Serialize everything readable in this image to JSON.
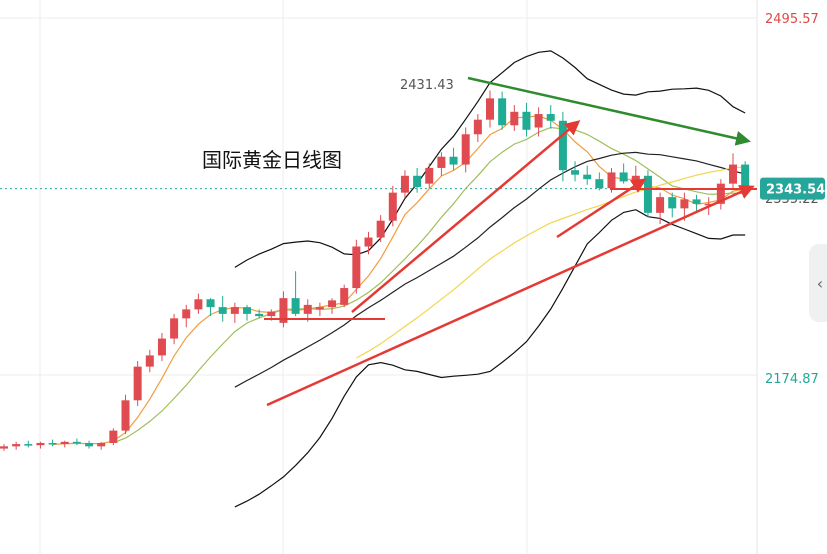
{
  "chart_data": {
    "type": "candlestick",
    "title": "国际黄金日线图",
    "ylim": [
      2110,
      2510
    ],
    "axis_ticks": [
      {
        "value": 2495.57,
        "label": "2495.57",
        "color": "#e04848"
      },
      {
        "value": 2335.22,
        "label": "2335.22",
        "color": "#555555"
      },
      {
        "value": 2174.87,
        "label": "2174.87",
        "color": "#26a69a"
      }
    ],
    "last_price": {
      "value": 2343.54,
      "label": "2343.54",
      "color": "#26a69a"
    },
    "high_annotation": {
      "value": 2431.43,
      "label": "2431.43"
    },
    "up_color": "#e04b52",
    "down_color": "#1fab94",
    "candles": [
      [
        2112,
        2116,
        2110,
        2114
      ],
      [
        2114,
        2118,
        2111,
        2116
      ],
      [
        2116,
        2119,
        2113,
        2115
      ],
      [
        2115,
        2118,
        2112,
        2117
      ],
      [
        2117,
        2120,
        2114,
        2116
      ],
      [
        2116,
        2119,
        2113,
        2118
      ],
      [
        2118,
        2121,
        2115,
        2117
      ],
      [
        2117,
        2119,
        2112,
        2114
      ],
      [
        2114,
        2118,
        2111,
        2117
      ],
      [
        2117,
        2130,
        2115,
        2128
      ],
      [
        2128,
        2160,
        2125,
        2155
      ],
      [
        2155,
        2190,
        2150,
        2185
      ],
      [
        2185,
        2200,
        2180,
        2195
      ],
      [
        2195,
        2215,
        2190,
        2210
      ],
      [
        2210,
        2232,
        2205,
        2228
      ],
      [
        2228,
        2240,
        2220,
        2236
      ],
      [
        2236,
        2250,
        2232,
        2245
      ],
      [
        2245,
        2246,
        2230,
        2238
      ],
      [
        2238,
        2248,
        2225,
        2232
      ],
      [
        2232,
        2242,
        2224,
        2238
      ],
      [
        2238,
        2240,
        2226,
        2232
      ],
      [
        2232,
        2236,
        2228,
        2230
      ],
      [
        2230,
        2236,
        2226,
        2234
      ],
      [
        2224,
        2252,
        2220,
        2246
      ],
      [
        2246,
        2270,
        2230,
        2232
      ],
      [
        2232,
        2245,
        2225,
        2240
      ],
      [
        2236,
        2242,
        2230,
        2238
      ],
      [
        2238,
        2246,
        2232,
        2244
      ],
      [
        2240,
        2258,
        2238,
        2255
      ],
      [
        2255,
        2298,
        2250,
        2292
      ],
      [
        2292,
        2305,
        2285,
        2300
      ],
      [
        2300,
        2320,
        2296,
        2315
      ],
      [
        2315,
        2346,
        2310,
        2340
      ],
      [
        2340,
        2360,
        2335,
        2355
      ],
      [
        2355,
        2362,
        2340,
        2345
      ],
      [
        2348,
        2366,
        2344,
        2362
      ],
      [
        2362,
        2376,
        2355,
        2372
      ],
      [
        2372,
        2380,
        2360,
        2365
      ],
      [
        2365,
        2398,
        2358,
        2392
      ],
      [
        2392,
        2410,
        2385,
        2405
      ],
      [
        2405,
        2431,
        2398,
        2424
      ],
      [
        2424,
        2430,
        2396,
        2400
      ],
      [
        2400,
        2418,
        2395,
        2412
      ],
      [
        2412,
        2420,
        2390,
        2396
      ],
      [
        2398,
        2416,
        2390,
        2410
      ],
      [
        2410,
        2418,
        2397,
        2404
      ],
      [
        2404,
        2412,
        2350,
        2360
      ],
      [
        2360,
        2368,
        2350,
        2356
      ],
      [
        2356,
        2364,
        2347,
        2352
      ],
      [
        2352,
        2358,
        2342,
        2344
      ],
      [
        2344,
        2362,
        2340,
        2358
      ],
      [
        2358,
        2366,
        2348,
        2350
      ],
      [
        2350,
        2364,
        2345,
        2355
      ],
      [
        2355,
        2360,
        2318,
        2322
      ],
      [
        2322,
        2340,
        2312,
        2336
      ],
      [
        2336,
        2340,
        2318,
        2326
      ],
      [
        2326,
        2340,
        2315,
        2334
      ],
      [
        2334,
        2338,
        2322,
        2330
      ],
      [
        2330,
        2336,
        2320,
        2330
      ],
      [
        2330,
        2352,
        2325,
        2348
      ],
      [
        2348,
        2375,
        2344,
        2365
      ],
      [
        2365,
        2368,
        2340,
        2343.54
      ]
    ],
    "annotation_high": 2431.43
  }
}
